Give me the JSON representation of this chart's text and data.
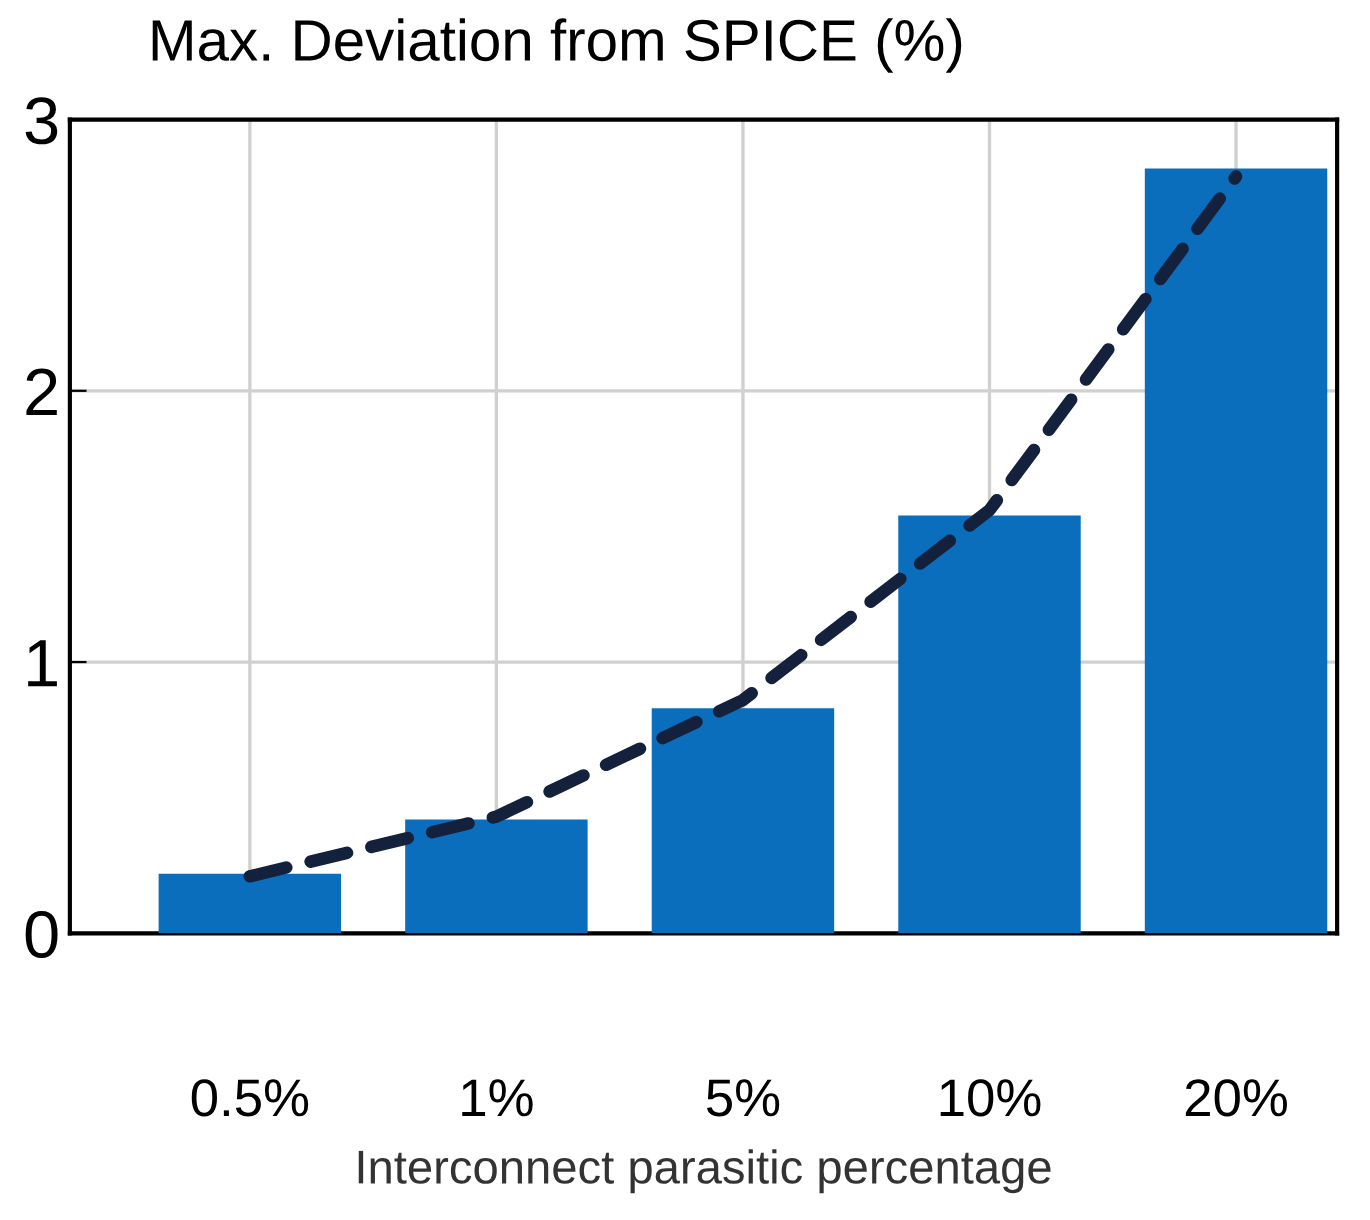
{
  "chart_data": {
    "type": "bar",
    "title": "Max. Deviation from SPICE (%)",
    "xlabel": "Interconnect parasitic percentage",
    "categories": [
      "0.5%",
      "1%",
      "5%",
      "10%",
      "20%"
    ],
    "series": [
      {
        "color": "#0a6ebd",
        "values": [
          0.22,
          0.42,
          0.83,
          1.54,
          2.82
        ]
      },
      {
        "type": "line",
        "color": "#14213d",
        "line_style": "dashed",
        "marker": "none",
        "values": [
          0.21,
          0.43,
          0.86,
          1.56,
          2.79
        ]
      }
    ],
    "ylim": [
      0,
      3
    ],
    "yticks": [
      0,
      1,
      2,
      3
    ],
    "grid": true
  }
}
